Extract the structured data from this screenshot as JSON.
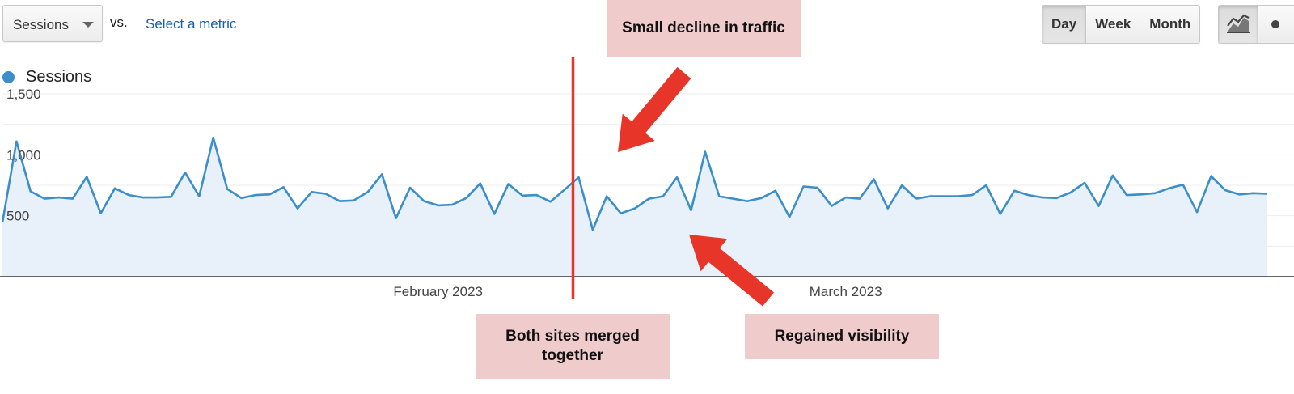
{
  "toolbar": {
    "metric_select_label": "Sessions",
    "vs_label": "vs.",
    "select_metric_link": "Select a metric",
    "period_buttons": [
      "Day",
      "Week",
      "Month"
    ],
    "active_period": "Day",
    "chart_type_icons": [
      "line-chart-icon",
      "motion-chart-icon"
    ]
  },
  "legend": {
    "series_name": "Sessions",
    "color": "#3b8ec9"
  },
  "annotations": {
    "top": "Small decline in traffic",
    "merge": "Both sites merged together",
    "regain": "Regained visibility",
    "box_color": "#f0cbcb",
    "arrow_color": "#e8352a"
  },
  "chart_data": {
    "type": "area",
    "title": "",
    "xlabel": "",
    "ylabel": "",
    "ylim": [
      0,
      1500
    ],
    "yticks": [
      500,
      1000,
      1500
    ],
    "ytick_labels": [
      "500",
      "1,000",
      "1,500"
    ],
    "x_month_labels": [
      "February 2023",
      "March 2023"
    ],
    "x_month_label_index": [
      31,
      60
    ],
    "event_line_index": 41,
    "series": [
      {
        "name": "Sessions",
        "color": "#3b8ec9",
        "values": [
          445,
          1110,
          700,
          640,
          650,
          640,
          820,
          520,
          725,
          670,
          650,
          650,
          655,
          855,
          660,
          1140,
          720,
          645,
          670,
          675,
          735,
          560,
          695,
          680,
          620,
          625,
          695,
          840,
          480,
          730,
          620,
          585,
          590,
          645,
          765,
          515,
          760,
          665,
          670,
          615,
          715,
          815,
          385,
          660,
          520,
          560,
          640,
          660,
          815,
          545,
          1025,
          660,
          640,
          620,
          645,
          705,
          490,
          740,
          730,
          580,
          650,
          640,
          800,
          560,
          750,
          640,
          660,
          660,
          660,
          670,
          750,
          515,
          705,
          670,
          650,
          645,
          690,
          770,
          580,
          830,
          670,
          675,
          685,
          725,
          755,
          530,
          825,
          710,
          675,
          685,
          680
        ]
      }
    ]
  }
}
